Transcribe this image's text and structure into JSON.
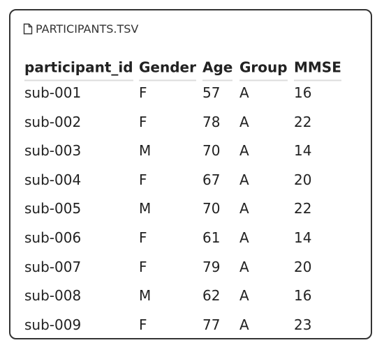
{
  "file": {
    "name": "PARTICIPANTS.TSV"
  },
  "table": {
    "columns": [
      "participant_id",
      "Gender",
      "Age",
      "Group",
      "MMSE"
    ],
    "rows": [
      [
        "sub-001",
        "F",
        57,
        "A",
        16
      ],
      [
        "sub-002",
        "F",
        78,
        "A",
        22
      ],
      [
        "sub-003",
        "M",
        70,
        "A",
        14
      ],
      [
        "sub-004",
        "F",
        67,
        "A",
        20
      ],
      [
        "sub-005",
        "M",
        70,
        "A",
        22
      ],
      [
        "sub-006",
        "F",
        61,
        "A",
        14
      ],
      [
        "sub-007",
        "F",
        79,
        "A",
        20
      ],
      [
        "sub-008",
        "M",
        62,
        "A",
        16
      ],
      [
        "sub-009",
        "F",
        77,
        "A",
        23
      ]
    ]
  }
}
